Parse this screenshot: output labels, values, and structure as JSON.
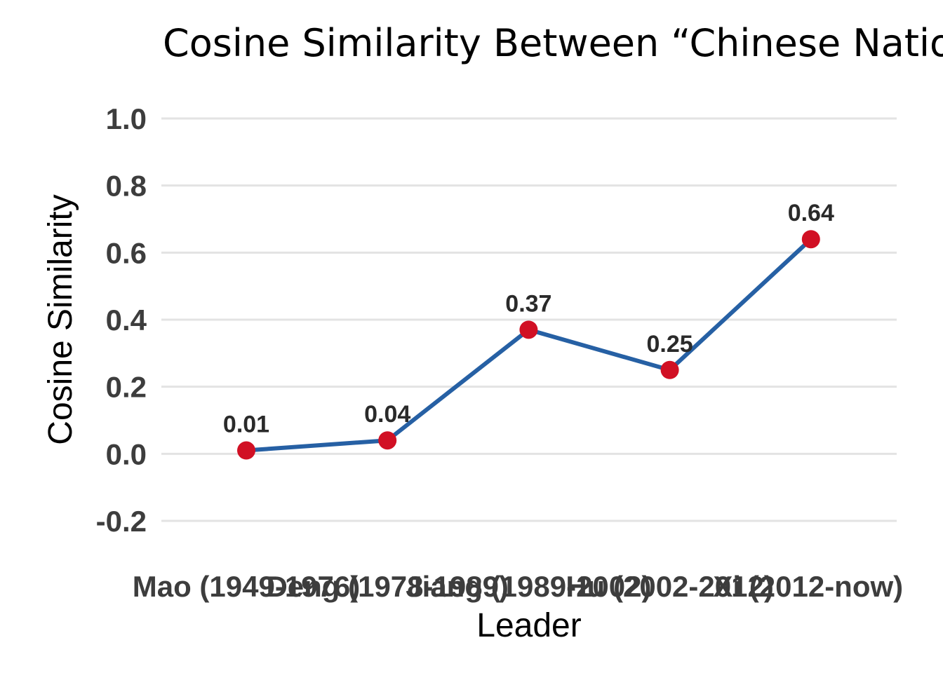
{
  "chart_data": {
    "type": "line",
    "title": "Cosine Similarity Between “Chinese Natio",
    "xlabel": "Leader",
    "ylabel": "Cosine Similarity",
    "categories": [
      "Mao (1949-1976)",
      "Deng (1978-1989)",
      "Jiang (1989-2002)",
      "Hu (2002-2012)",
      "Xi (2012-now)"
    ],
    "values": [
      0.01,
      0.04,
      0.37,
      0.25,
      0.64
    ],
    "data_labels": [
      "0.01",
      "0.04",
      "0.37",
      "0.25",
      "0.64"
    ],
    "ylim": [
      -0.2,
      1.0
    ],
    "yticks": [
      -0.2,
      0.0,
      0.2,
      0.4,
      0.6,
      0.8,
      1.0
    ],
    "ytick_labels": [
      "-0.2",
      "0.0",
      "0.2",
      "0.4",
      "0.6",
      "0.8",
      "1.0"
    ],
    "grid": true,
    "line_color": "#2660a4",
    "marker_color": "#d11024"
  }
}
